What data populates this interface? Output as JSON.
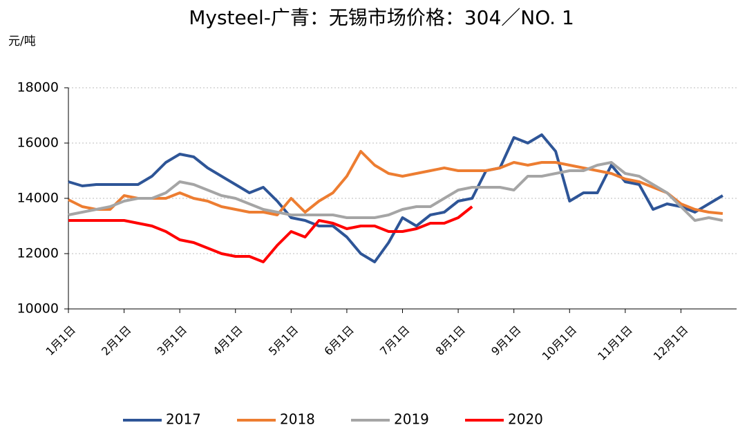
{
  "chart_data": {
    "type": "line",
    "title": "Mysteel-广青：无锡市场价格：304／NO. 1",
    "y_label": "元/吨",
    "categories": [
      "1月1日",
      null,
      null,
      null,
      "2月1日",
      null,
      null,
      null,
      "3月1日",
      null,
      null,
      null,
      "4月1日",
      null,
      null,
      null,
      "5月1日",
      null,
      null,
      null,
      "6月1日",
      null,
      null,
      null,
      "7月1日",
      null,
      null,
      null,
      "8月1日",
      null,
      null,
      null,
      "9月1日",
      null,
      null,
      null,
      "10月1日",
      null,
      null,
      null,
      "11月1日",
      null,
      null,
      null,
      "12月1日",
      null,
      null,
      null
    ],
    "series": [
      {
        "name": "2017",
        "color": "#2e5597",
        "values": [
          14600,
          14450,
          14500,
          14500,
          14500,
          14500,
          14800,
          15300,
          15600,
          15500,
          15100,
          14800,
          14500,
          14200,
          14400,
          13900,
          13300,
          13200,
          13000,
          13000,
          12600,
          12000,
          11700,
          12400,
          13300,
          13000,
          13400,
          13500,
          13900,
          14000,
          15000,
          15100,
          16200,
          16000,
          16300,
          15700,
          13900,
          14200,
          14200,
          15200,
          14600,
          14500,
          13600,
          13800,
          13700,
          13500,
          13800,
          14100
        ]
      },
      {
        "name": "2018",
        "color": "#ed7d31",
        "values": [
          13950,
          13700,
          13600,
          13600,
          14100,
          14000,
          14000,
          14000,
          14200,
          14000,
          13900,
          13700,
          13600,
          13500,
          13500,
          13400,
          14000,
          13500,
          13900,
          14200,
          14800,
          15700,
          15200,
          14900,
          14800,
          14900,
          15000,
          15100,
          15000,
          15000,
          15000,
          15100,
          15300,
          15200,
          15300,
          15300,
          15200,
          15100,
          15000,
          14900,
          14700,
          14600,
          14400,
          14200,
          13800,
          13600,
          13500,
          13450
        ]
      },
      {
        "name": "2019",
        "color": "#a5a5a5",
        "values": [
          13400,
          13500,
          13600,
          13700,
          13900,
          14000,
          14000,
          14200,
          14600,
          14500,
          14300,
          14100,
          14000,
          13800,
          13600,
          13500,
          13400,
          13400,
          13400,
          13400,
          13300,
          13300,
          13300,
          13400,
          13600,
          13700,
          13700,
          14000,
          14300,
          14400,
          14400,
          14400,
          14300,
          14800,
          14800,
          14900,
          15000,
          15000,
          15200,
          15300,
          14900,
          14800,
          14500,
          14200,
          13700,
          13200,
          13300,
          13200
        ]
      },
      {
        "name": "2020",
        "color": "#ff0000",
        "values": [
          13200,
          13200,
          13200,
          13200,
          13200,
          13100,
          13000,
          12800,
          12500,
          12400,
          12200,
          12000,
          11900,
          11900,
          11700,
          12300,
          12800,
          12600,
          13200,
          13100,
          12900,
          13000,
          13000,
          12800,
          12800,
          12900,
          13100,
          13100,
          13300,
          13700,
          null,
          null,
          null,
          null,
          null,
          null,
          null,
          null,
          null,
          null,
          null,
          null,
          null,
          null,
          null,
          null,
          null,
          null
        ]
      }
    ],
    "ylim": [
      10000,
      18000
    ],
    "yticks": [
      10000,
      12000,
      14000,
      16000,
      18000
    ],
    "grid": true,
    "legend": "bottom"
  }
}
